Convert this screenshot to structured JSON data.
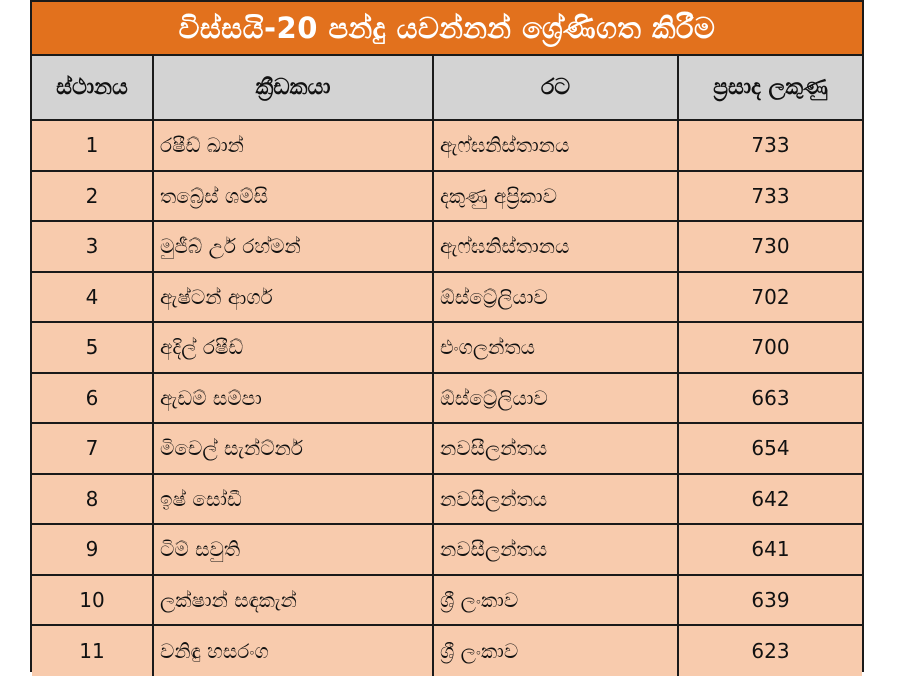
{
  "title": "විස්සයි-20 පන්දු යවන්නන් ශ්‍රේණිගත කිරීම",
  "columns": [
    "ස්ථානය",
    "ක්‍රීඩකයා",
    "රට",
    "ප්‍රසාද ලකුණු"
  ],
  "colors": {
    "title_bg": "#e2711d",
    "header_bg": "#d3d3d3",
    "row_bg": "#f8cbad"
  },
  "rows": [
    {
      "rank": "1",
      "player": "රෂීඩ් ඛාන්",
      "country": "ඇෆ්ඝනිස්තානය",
      "points": "733"
    },
    {
      "rank": "2",
      "player": "තබ්‍රේස් ශම්සි",
      "country": "දකුණු අප්‍රිකාව",
      "points": "733"
    },
    {
      "rank": "3",
      "player": "මුජීබ් උර් රහ්මන්",
      "country": "ඇෆ්ඝනිස්තානය",
      "points": "730"
    },
    {
      "rank": "4",
      "player": "ඇෂ්ටන් ආගර්",
      "country": "ඕස්ට්‍රේලියාව",
      "points": "702"
    },
    {
      "rank": "5",
      "player": "අදිල් රෂීඩ්",
      "country": "එංගලන්තය",
      "points": "700"
    },
    {
      "rank": "6",
      "player": "ඇඩම් සම්පා",
      "country": "ඕස්ට්‍රේලියාව",
      "points": "663"
    },
    {
      "rank": "7",
      "player": "මිචෙල් සැන්ට්නර්",
      "country": "නවසීලන්තය",
      "points": "654"
    },
    {
      "rank": "8",
      "player": "ඉෂ් සෝඩී",
      "country": "නවසීලන්තය",
      "points": "642"
    },
    {
      "rank": "9",
      "player": "ටිම් සවුති",
      "country": "නවසීලන්තය",
      "points": "641"
    },
    {
      "rank": "10",
      "player": "ලක්ෂාන් සඳකැන්",
      "country": "ශ්‍රී ලංකාව",
      "points": "639"
    },
    {
      "rank": "11",
      "player": "වනිඳු හසරංග",
      "country": "ශ්‍රී ලංකාව",
      "points": "623"
    }
  ]
}
